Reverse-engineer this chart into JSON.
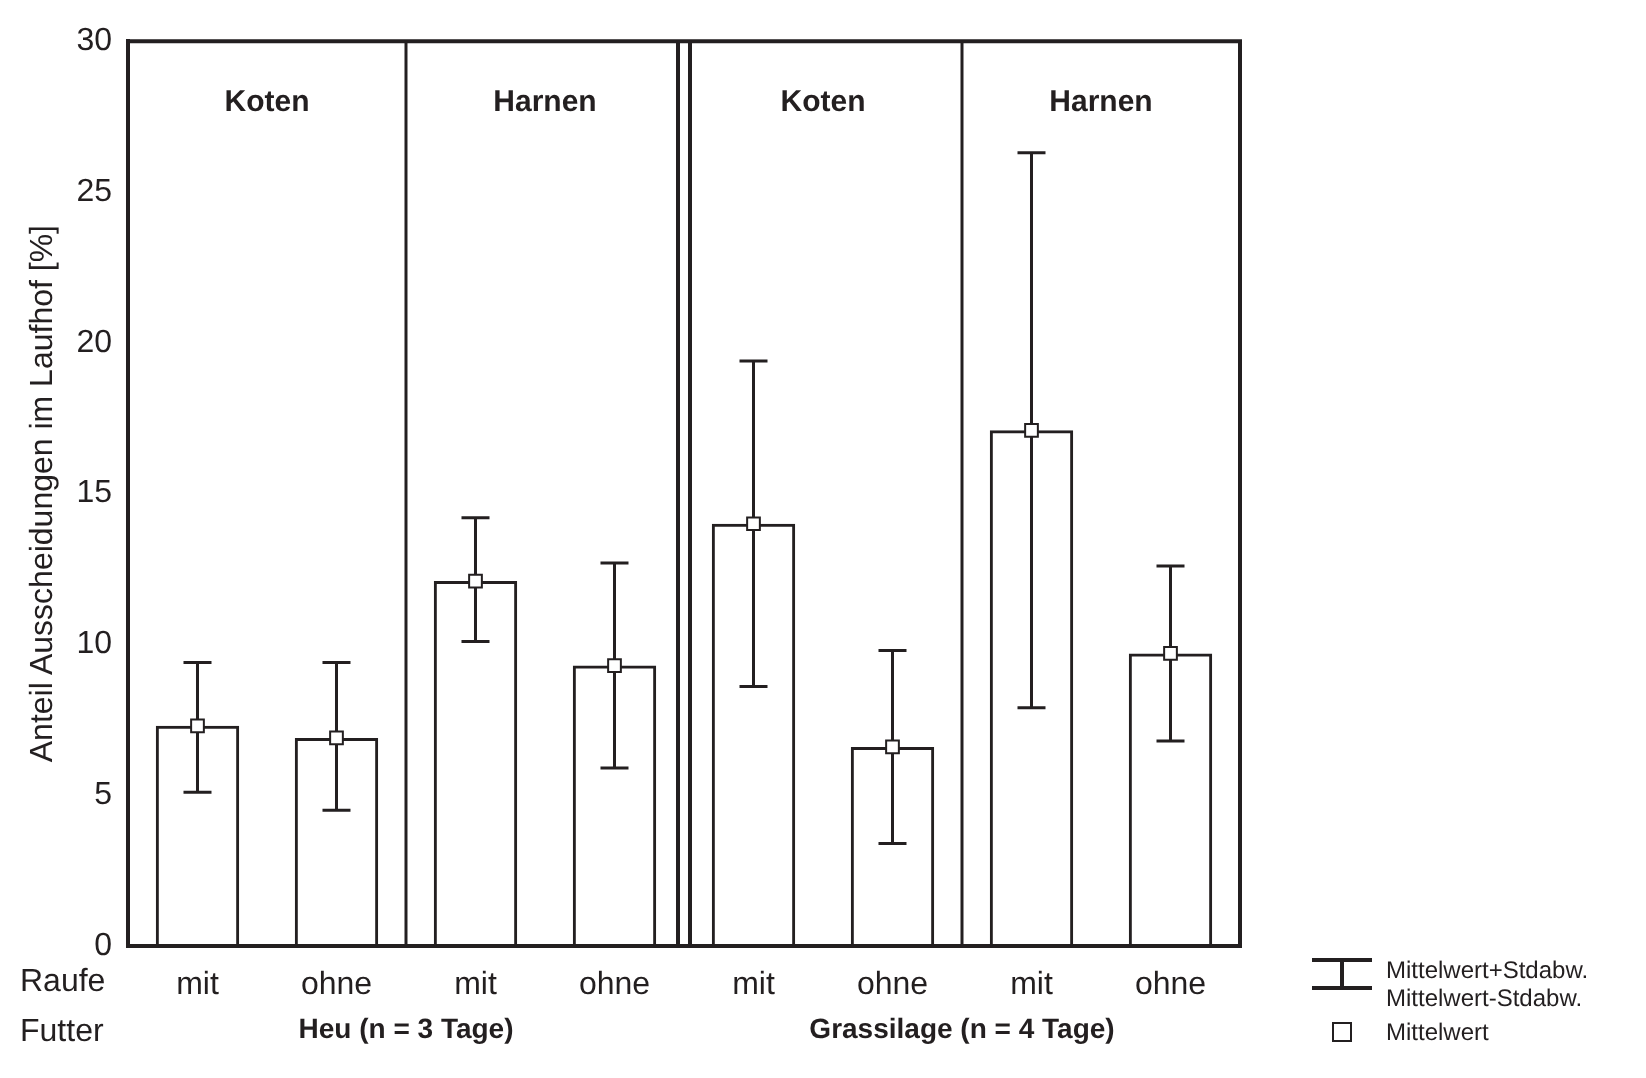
{
  "chart_data": {
    "type": "bar",
    "ylabel": "Anteil Ausscheidungen im Laufhof [%]",
    "categories": [
      "mit",
      "ohne",
      "mit",
      "ohne",
      "mit",
      "ohne",
      "mit",
      "ohne"
    ],
    "series": [
      {
        "color": "#231f20",
        "values": [
          7.3,
          6.9,
          12.1,
          9.3,
          14.0,
          6.6,
          17.1,
          9.7
        ],
        "errors": [
          [
            5.1,
            9.4
          ],
          [
            4.5,
            9.4
          ],
          [
            10.1,
            14.2
          ],
          [
            5.9,
            12.7
          ],
          [
            8.6,
            19.4
          ],
          [
            3.4,
            9.8
          ],
          [
            7.9,
            26.3
          ],
          [
            6.8,
            12.6
          ]
        ]
      },
      {
        "type": "scatter",
        "name": "Mittelwert",
        "color": "#ffffff",
        "values": [
          7.3,
          6.9,
          12.1,
          9.3,
          14.0,
          6.6,
          17.1,
          9.7
        ]
      }
    ],
    "marker": "square",
    "ylim": [
      0,
      30
    ],
    "yticks": [
      0,
      5,
      10,
      15,
      20,
      25,
      30
    ],
    "grid": false,
    "legend": "bottom right",
    "annotations": [
      "Koten",
      "Harnen",
      "Koten",
      "Harnen",
      "Heu (n = 3 Tage)",
      "Grassilage (n = 4 Tage)",
      "Raufe",
      "Futter",
      "Mittelwert+Stdabw.",
      "Mittelwert-Stdabw."
    ]
  }
}
